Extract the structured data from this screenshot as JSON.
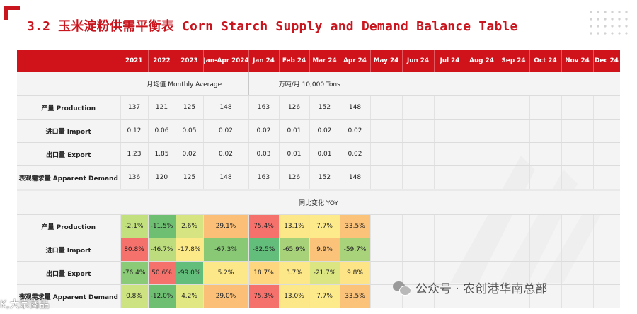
{
  "title": "3.2 玉米淀粉供需平衡表 Corn Starch Supply and Demand Balance Table",
  "header": {
    "columns": [
      "2021",
      "2022",
      "2023",
      "Jan-Apr 2024",
      "Jan 24",
      "Feb 24",
      "Mar 24",
      "Apr 24",
      "May 24",
      "Jun 24",
      "Jul 24",
      "Aug 24",
      "Sep 24",
      "Oct 24",
      "Nov 24",
      "Dec 24"
    ]
  },
  "section_monthly": {
    "left": "月均值  Monthly Average",
    "right": "万吨/月  10,000 Tons",
    "rows": [
      {
        "label": "产量 Production",
        "values": [
          "137",
          "121",
          "125",
          "148",
          "163",
          "126",
          "152",
          "148",
          "",
          "",
          "",
          "",
          "",
          "",
          "",
          ""
        ]
      },
      {
        "label": "进口量 Import",
        "values": [
          "0.12",
          "0.06",
          "0.05",
          "0.02",
          "0.02",
          "0.01",
          "0.02",
          "0.02",
          "",
          "",
          "",
          "",
          "",
          "",
          "",
          ""
        ]
      },
      {
        "label": "出口量 Export",
        "values": [
          "1.23",
          "1.85",
          "0.02",
          "0.02",
          "0.03",
          "0.01",
          "0.01",
          "0.02",
          "",
          "",
          "",
          "",
          "",
          "",
          "",
          ""
        ]
      },
      {
        "label": "表观需求量 Apparent Demand",
        "values": [
          "136",
          "120",
          "125",
          "148",
          "163",
          "126",
          "152",
          "148",
          "",
          "",
          "",
          "",
          "",
          "",
          "",
          ""
        ]
      }
    ]
  },
  "section_yoy": {
    "label": "同比变化 YOY",
    "rows": [
      {
        "label": "产量 Production",
        "values": [
          "-2.1%",
          "-11.5%",
          "2.6%",
          "29.1%",
          "75.4%",
          "13.1%",
          "7.7%",
          "33.5%",
          "",
          "",
          "",
          "",
          "",
          "",
          "",
          ""
        ],
        "colors": [
          "#c3e07e",
          "#6fbf73",
          "#d6e581",
          "#fbbf77",
          "#f4716c",
          "#fde889",
          "#fdea8a",
          "#fbc27a",
          "",
          "",
          "",
          "",
          "",
          "",
          "",
          ""
        ]
      },
      {
        "label": "进口量 Import",
        "values": [
          "80.8%",
          "-46.7%",
          "-17.8%",
          "-67.3%",
          "-82.5%",
          "-65.9%",
          "9.9%",
          "-59.7%",
          "",
          "",
          "",
          "",
          "",
          "",
          "",
          ""
        ],
        "colors": [
          "#f4716c",
          "#bcdc7e",
          "#fce987",
          "#89c976",
          "#63be7b",
          "#a7d27a",
          "#fbc27a",
          "#a9d37b",
          "",
          "",
          "",
          "",
          "",
          "",
          "",
          ""
        ]
      },
      {
        "label": "出口量 Export",
        "values": [
          "-76.4%",
          "50.6%",
          "-99.0%",
          "5.2%",
          "18.7%",
          "3.7%",
          "-21.7%",
          "9.8%",
          "",
          "",
          "",
          "",
          "",
          "",
          "",
          ""
        ],
        "colors": [
          "#8bca76",
          "#f4716c",
          "#63be7b",
          "#fde889",
          "#fed680",
          "#fde889",
          "#dbe682",
          "#fde487",
          "",
          "",
          "",
          "",
          "",
          "",
          "",
          ""
        ]
      },
      {
        "label": "表观需求量 Apparent Demand",
        "values": [
          "0.8%",
          "-12.0%",
          "4.2%",
          "29.0%",
          "75.3%",
          "13.0%",
          "7.7%",
          "33.5%",
          "",
          "",
          "",
          "",
          "",
          "",
          "",
          ""
        ],
        "colors": [
          "#cde281",
          "#6fbf73",
          "#e0e783",
          "#fbbf77",
          "#f4716c",
          "#fde889",
          "#fdea8a",
          "#fbc27a",
          "",
          "",
          "",
          "",
          "",
          "",
          "",
          ""
        ]
      }
    ]
  },
  "footer": {
    "wechat_text": "公众号 · 农创港华南总部",
    "watermark_text": "K,大宗商品"
  }
}
